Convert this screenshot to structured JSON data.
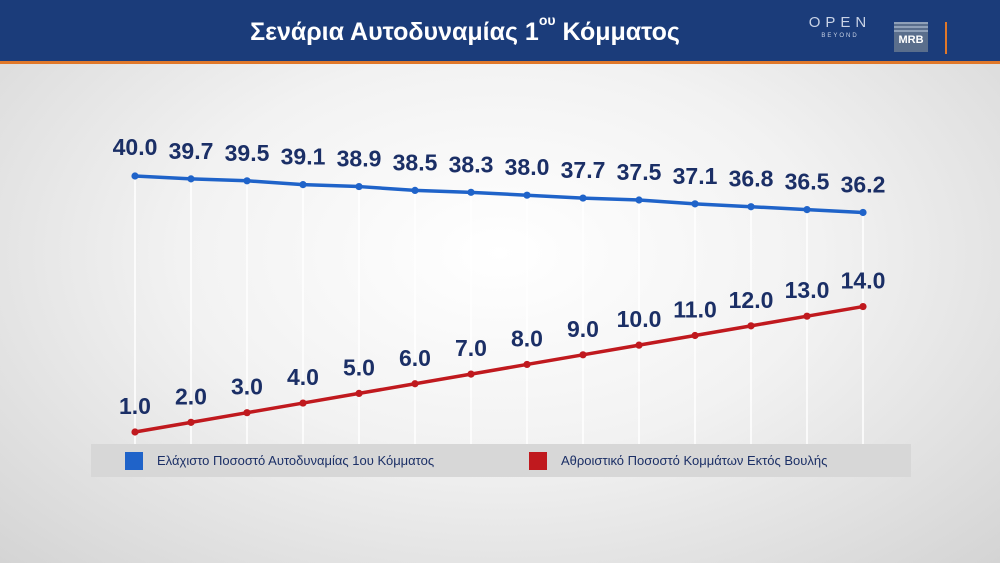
{
  "header": {
    "title_main": "Σενάρια Αυτοδυναμίας 1",
    "title_sup": "ου",
    "title_end": " Κόμματος",
    "logo_open_text": "OPEN",
    "logo_open_sub": "BEYOND",
    "logo_mrb_text": "MRB"
  },
  "colors": {
    "header_bg": "#1b3c7a",
    "accent": "#e0782a",
    "series1": "#1f63c9",
    "series2": "#c0191e",
    "label": "#1b2f66"
  },
  "chart_data": {
    "type": "line",
    "title": "Σενάρια Αυτοδυναμίας 1ου Κόμματος",
    "xlabel": "",
    "ylabel": "",
    "ylim": [
      0,
      42
    ],
    "grid": "vertical",
    "legend_position": "bottom",
    "series": [
      {
        "name": "Ελάχιστο Ποσοστό Αυτοδυναμίας 1ου Κόμματος",
        "color": "#1f63c9",
        "values": [
          40.0,
          39.7,
          39.5,
          39.1,
          38.9,
          38.5,
          38.3,
          38.0,
          37.7,
          37.5,
          37.1,
          36.8,
          36.5,
          36.2
        ],
        "labels": [
          "40.0",
          "39.7",
          "39.5",
          "39.1",
          "38.9",
          "38.5",
          "38.3",
          "38.0",
          "37.7",
          "37.5",
          "37.1",
          "36.8",
          "36.5",
          "36.2"
        ]
      },
      {
        "name": "Αθροιστικό Ποσοστό Κομμάτων Εκτός Βουλής",
        "color": "#c0191e",
        "values": [
          1.0,
          2.0,
          3.0,
          4.0,
          5.0,
          6.0,
          7.0,
          8.0,
          9.0,
          10.0,
          11.0,
          12.0,
          13.0,
          14.0
        ],
        "labels": [
          "1.0",
          "2.0",
          "3.0",
          "4.0",
          "5.0",
          "6.0",
          "7.0",
          "8.0",
          "9.0",
          "10.0",
          "11.0",
          "12.0",
          "13.0",
          "14.0"
        ]
      }
    ]
  }
}
